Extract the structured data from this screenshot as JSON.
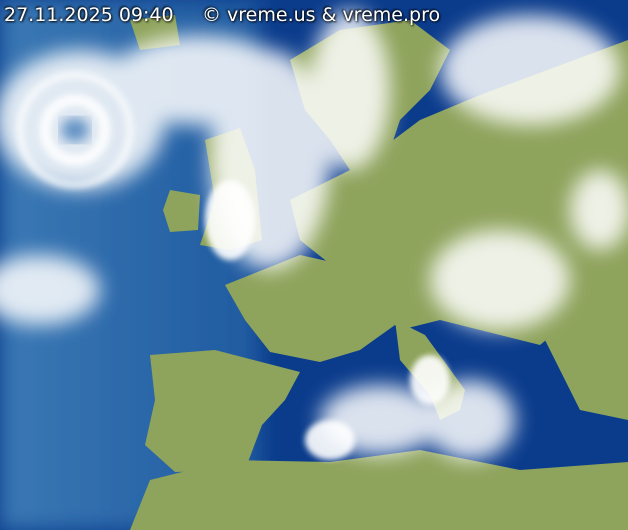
{
  "timestamp": "27.11.2025 09:40",
  "copyright": "© vreme.us & vreme.pro",
  "colors": {
    "sea": "#0b3c8c",
    "atlantic": "#2a68a8",
    "land": "#8ea35c",
    "cloud": "#ffffff",
    "border": "#5a4a7a"
  }
}
